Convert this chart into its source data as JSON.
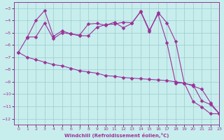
{
  "line1_x": [
    0,
    1,
    2,
    3,
    4,
    5,
    6,
    7,
    8,
    9,
    10,
    11,
    12,
    13,
    14,
    15,
    16,
    17,
    18,
    19,
    20,
    21,
    22,
    23
  ],
  "line1_y": [
    -6.6,
    -5.4,
    -4.0,
    -3.2,
    -5.3,
    -4.85,
    -5.1,
    -5.2,
    -4.3,
    -4.25,
    -4.4,
    -4.15,
    -4.6,
    -4.25,
    -3.25,
    -4.8,
    -3.5,
    -5.8,
    -9.1,
    -9.1,
    -10.6,
    -11.05,
    -11.6,
    -11.6
  ],
  "line2_x": [
    0,
    1,
    2,
    3,
    4,
    5,
    6,
    7,
    8,
    9,
    10,
    11,
    12,
    13,
    14,
    15,
    16,
    17,
    18,
    19,
    20,
    21,
    22,
    23
  ],
  "line2_y": [
    -6.6,
    -7.0,
    -7.2,
    -7.4,
    -7.6,
    -7.7,
    -7.9,
    -8.1,
    -8.2,
    -8.3,
    -8.5,
    -8.55,
    -8.65,
    -8.7,
    -8.75,
    -8.8,
    -8.85,
    -8.9,
    -9.0,
    -9.1,
    -9.35,
    -9.6,
    -10.7,
    -11.6
  ],
  "line3_x": [
    1,
    2,
    3,
    4,
    5,
    6,
    7,
    8,
    9,
    10,
    11,
    12,
    13,
    14,
    15,
    16,
    17,
    18,
    19,
    20,
    21,
    22,
    23
  ],
  "line3_y": [
    -5.35,
    -5.35,
    -4.2,
    -5.5,
    -5.0,
    -5.1,
    -5.25,
    -5.25,
    -4.55,
    -4.35,
    -4.3,
    -4.15,
    -4.2,
    -3.3,
    -4.9,
    -3.35,
    -4.2,
    -5.7,
    -9.15,
    -9.25,
    -10.55,
    -10.85,
    -11.6
  ],
  "line_color": "#993399",
  "bg_color": "#c8eded",
  "grid_color": "#99cccc",
  "xlabel": "Windchill (Refroidissement éolien,°C)",
  "xlim": [
    -0.5,
    23
  ],
  "ylim": [
    -12.5,
    -2.5
  ],
  "yticks": [
    -3,
    -4,
    -5,
    -6,
    -7,
    -8,
    -9,
    -10,
    -11,
    -12
  ],
  "xticks": [
    0,
    1,
    2,
    3,
    4,
    5,
    6,
    7,
    8,
    9,
    10,
    11,
    12,
    13,
    14,
    15,
    16,
    17,
    18,
    19,
    20,
    21,
    22,
    23
  ],
  "markersize": 2.5
}
